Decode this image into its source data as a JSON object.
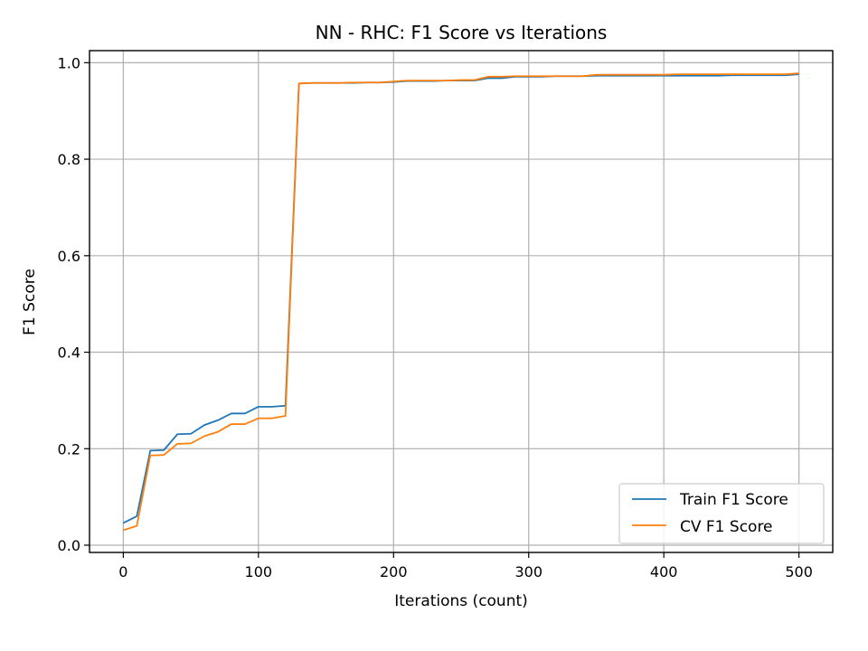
{
  "chart_data": {
    "type": "line",
    "title": "NN - RHC: F1 Score vs Iterations",
    "xlabel": "Iterations (count)",
    "ylabel": "F1 Score",
    "xlim": [
      -25,
      525
    ],
    "ylim": [
      -0.015,
      1.025
    ],
    "grid": true,
    "legend_position": "lower right",
    "x_ticks": [
      0,
      100,
      200,
      300,
      400,
      500
    ],
    "y_ticks": [
      0.0,
      0.2,
      0.4,
      0.6,
      0.8,
      1.0
    ],
    "x_tick_labels": [
      "0",
      "100",
      "200",
      "300",
      "400",
      "500"
    ],
    "y_tick_labels": [
      "0.0",
      "0.2",
      "0.4",
      "0.6",
      "0.8",
      "1.0"
    ],
    "x": [
      0,
      10,
      20,
      30,
      40,
      50,
      60,
      70,
      80,
      90,
      100,
      110,
      120,
      130,
      140,
      150,
      160,
      170,
      180,
      190,
      200,
      210,
      220,
      230,
      240,
      250,
      260,
      270,
      280,
      290,
      300,
      310,
      320,
      330,
      340,
      350,
      360,
      370,
      380,
      390,
      400,
      410,
      420,
      430,
      440,
      450,
      460,
      470,
      480,
      490,
      500
    ],
    "series": [
      {
        "name": "Train F1 Score",
        "color": "#1f77b4",
        "values": [
          0.046,
          0.06,
          0.196,
          0.197,
          0.23,
          0.231,
          0.249,
          0.259,
          0.273,
          0.273,
          0.287,
          0.287,
          0.289,
          0.957,
          0.958,
          0.958,
          0.958,
          0.958,
          0.959,
          0.959,
          0.96,
          0.962,
          0.962,
          0.962,
          0.963,
          0.963,
          0.963,
          0.968,
          0.968,
          0.971,
          0.971,
          0.971,
          0.972,
          0.972,
          0.972,
          0.973,
          0.973,
          0.973,
          0.973,
          0.973,
          0.973,
          0.973,
          0.973,
          0.973,
          0.973,
          0.974,
          0.974,
          0.974,
          0.974,
          0.974,
          0.976
        ]
      },
      {
        "name": "CV F1 Score",
        "color": "#ff7f0e",
        "values": [
          0.031,
          0.04,
          0.186,
          0.187,
          0.21,
          0.211,
          0.226,
          0.235,
          0.251,
          0.251,
          0.263,
          0.263,
          0.268,
          0.957,
          0.958,
          0.958,
          0.958,
          0.959,
          0.959,
          0.959,
          0.961,
          0.963,
          0.963,
          0.963,
          0.963,
          0.964,
          0.964,
          0.971,
          0.971,
          0.972,
          0.972,
          0.972,
          0.972,
          0.972,
          0.972,
          0.975,
          0.975,
          0.975,
          0.975,
          0.975,
          0.975,
          0.976,
          0.976,
          0.976,
          0.976,
          0.976,
          0.976,
          0.976,
          0.976,
          0.976,
          0.978
        ]
      }
    ]
  }
}
